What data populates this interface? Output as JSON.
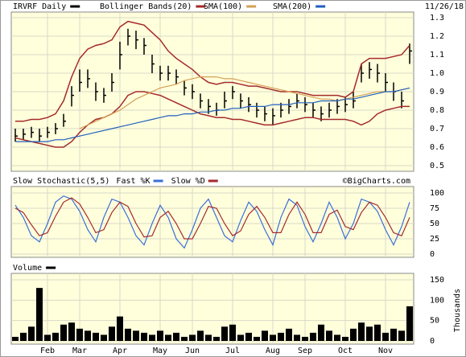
{
  "chart_data": [
    {
      "type": "ohlc",
      "date": "11/26/18",
      "ylim": [
        0.5,
        1.3
      ],
      "yticks": [
        0.5,
        0.6,
        0.7,
        0.8,
        0.9,
        {
          "value": 1,
          "label": "1.0"
        },
        1.1,
        1.2,
        1.3
      ],
      "grid": true,
      "series": [
        {
          "name": "IRVRF Daily",
          "color": "#000000",
          "high": [
            0.7,
            0.7,
            0.71,
            0.7,
            0.71,
            0.73,
            0.78,
            0.93,
            1.02,
            1.02,
            0.95,
            0.92,
            1.0,
            1.17,
            1.24,
            1.23,
            1.19,
            1.1,
            1.04,
            1.04,
            1.02,
            0.96,
            0.94,
            0.89,
            0.86,
            0.84,
            0.9,
            0.93,
            0.89,
            0.87,
            0.84,
            0.82,
            0.81,
            0.84,
            0.86,
            0.89,
            0.87,
            0.84,
            0.82,
            0.84,
            0.86,
            0.87,
            0.9,
            1.05,
            1.06,
            1.05,
            1.0,
            0.95,
            0.9,
            1.16
          ],
          "low": [
            0.63,
            0.64,
            0.65,
            0.63,
            0.65,
            0.67,
            0.71,
            0.82,
            0.9,
            0.92,
            0.85,
            0.84,
            0.9,
            1.02,
            1.15,
            1.13,
            1.1,
            1.0,
            0.96,
            0.96,
            0.94,
            0.88,
            0.86,
            0.81,
            0.78,
            0.77,
            0.81,
            0.86,
            0.81,
            0.79,
            0.76,
            0.74,
            0.72,
            0.76,
            0.78,
            0.81,
            0.79,
            0.76,
            0.74,
            0.76,
            0.78,
            0.79,
            0.81,
            0.95,
            0.97,
            0.95,
            0.9,
            0.85,
            0.81,
            1.05
          ],
          "close": [
            0.66,
            0.67,
            0.68,
            0.66,
            0.68,
            0.7,
            0.74,
            0.88,
            0.95,
            0.97,
            0.9,
            0.88,
            0.95,
            1.1,
            1.2,
            1.18,
            1.15,
            1.05,
            1.0,
            1.0,
            0.98,
            0.92,
            0.9,
            0.85,
            0.82,
            0.8,
            0.85,
            0.9,
            0.85,
            0.83,
            0.8,
            0.78,
            0.77,
            0.8,
            0.82,
            0.85,
            0.83,
            0.8,
            0.78,
            0.8,
            0.82,
            0.83,
            0.85,
            1.0,
            1.02,
            1.0,
            0.95,
            0.9,
            0.85,
            1.12
          ]
        },
        {
          "name": "Bollinger Bands(20)",
          "color": "#a52a2a",
          "upper": [
            0.74,
            0.74,
            0.75,
            0.75,
            0.76,
            0.78,
            0.85,
            0.98,
            1.08,
            1.13,
            1.15,
            1.16,
            1.18,
            1.25,
            1.28,
            1.27,
            1.26,
            1.22,
            1.18,
            1.12,
            1.08,
            1.05,
            1.02,
            0.98,
            0.95,
            0.94,
            0.95,
            0.95,
            0.94,
            0.93,
            0.93,
            0.92,
            0.91,
            0.9,
            0.9,
            0.9,
            0.89,
            0.88,
            0.88,
            0.88,
            0.88,
            0.87,
            0.9,
            1.05,
            1.08,
            1.08,
            1.08,
            1.09,
            1.1,
            1.15
          ],
          "lower": [
            0.65,
            0.64,
            0.63,
            0.62,
            0.61,
            0.6,
            0.6,
            0.63,
            0.68,
            0.72,
            0.75,
            0.76,
            0.78,
            0.82,
            0.88,
            0.9,
            0.9,
            0.89,
            0.88,
            0.86,
            0.84,
            0.82,
            0.8,
            0.78,
            0.77,
            0.76,
            0.76,
            0.75,
            0.75,
            0.74,
            0.73,
            0.72,
            0.72,
            0.73,
            0.74,
            0.75,
            0.76,
            0.76,
            0.75,
            0.75,
            0.75,
            0.75,
            0.74,
            0.72,
            0.74,
            0.78,
            0.8,
            0.81,
            0.82,
            0.82
          ]
        },
        {
          "name": "SMA(100)",
          "color": "#d4a055",
          "values": [
            null,
            null,
            null,
            null,
            null,
            null,
            null,
            null,
            0.7,
            0.72,
            0.74,
            0.76,
            0.78,
            0.8,
            0.83,
            0.86,
            0.88,
            0.9,
            0.92,
            0.93,
            0.94,
            0.96,
            0.97,
            0.98,
            0.98,
            0.98,
            0.97,
            0.97,
            0.96,
            0.95,
            0.94,
            0.93,
            0.92,
            0.91,
            0.9,
            0.89,
            0.88,
            0.87,
            0.86,
            0.86,
            0.85,
            0.86,
            0.87,
            0.88,
            0.89,
            0.9,
            0.9,
            0.9,
            0.91,
            0.92
          ]
        },
        {
          "name": "SMA(200)",
          "color": "#1f5fbf",
          "values": [
            0.63,
            0.63,
            0.63,
            0.63,
            0.63,
            0.64,
            0.64,
            0.65,
            0.66,
            0.67,
            0.68,
            0.69,
            0.7,
            0.71,
            0.72,
            0.73,
            0.74,
            0.75,
            0.76,
            0.77,
            0.77,
            0.78,
            0.78,
            0.79,
            0.79,
            0.8,
            0.8,
            0.81,
            0.81,
            0.82,
            0.82,
            0.82,
            0.83,
            0.83,
            0.83,
            0.84,
            0.84,
            0.84,
            0.85,
            0.85,
            0.85,
            0.86,
            0.86,
            0.87,
            0.88,
            0.89,
            0.9,
            0.9,
            0.91,
            0.92
          ]
        }
      ]
    },
    {
      "type": "line",
      "title": "Slow Stochastic(5,5)",
      "credit": "©BigCharts.com",
      "ylim": [
        0,
        100
      ],
      "yticks": [
        0,
        25,
        50,
        75,
        100
      ],
      "grid": true,
      "series": [
        {
          "name": "Fast %K",
          "color": "#3a6fd8",
          "values": [
            80,
            60,
            30,
            20,
            50,
            85,
            95,
            90,
            70,
            40,
            20,
            60,
            90,
            85,
            60,
            30,
            15,
            50,
            80,
            60,
            25,
            10,
            40,
            75,
            90,
            60,
            30,
            20,
            55,
            85,
            70,
            40,
            15,
            60,
            90,
            80,
            45,
            20,
            50,
            85,
            60,
            25,
            50,
            90,
            85,
            70,
            40,
            15,
            45,
            85
          ]
        },
        {
          "name": "Slow %D",
          "color": "#a52a2a",
          "values": [
            75,
            68,
            48,
            30,
            35,
            62,
            85,
            92,
            82,
            60,
            35,
            40,
            68,
            85,
            78,
            50,
            28,
            30,
            60,
            70,
            50,
            25,
            25,
            50,
            78,
            75,
            50,
            30,
            38,
            65,
            78,
            60,
            35,
            35,
            65,
            85,
            65,
            35,
            35,
            65,
            72,
            45,
            40,
            68,
            85,
            80,
            60,
            35,
            30,
            60
          ]
        }
      ]
    },
    {
      "type": "bar",
      "title": "Volume",
      "ylabel": "Thousands",
      "color": "#000000",
      "ylim": [
        0,
        150
      ],
      "yticks": [
        0,
        50,
        100,
        150
      ],
      "grid": true,
      "categories": [
        null,
        null,
        null,
        null,
        "Feb",
        null,
        null,
        null,
        "Mar",
        null,
        null,
        null,
        null,
        "Apr",
        null,
        null,
        null,
        null,
        "May",
        null,
        null,
        null,
        "Jun",
        null,
        null,
        null,
        null,
        "Jul",
        null,
        null,
        null,
        null,
        "Aug",
        null,
        null,
        null,
        "Sep",
        null,
        null,
        null,
        null,
        "Oct",
        null,
        null,
        null,
        null,
        "Nov",
        null,
        null,
        null
      ],
      "values": [
        10,
        20,
        35,
        130,
        15,
        20,
        40,
        45,
        30,
        25,
        20,
        15,
        35,
        60,
        30,
        25,
        20,
        15,
        25,
        15,
        20,
        10,
        15,
        25,
        15,
        10,
        35,
        40,
        15,
        20,
        10,
        25,
        15,
        20,
        30,
        15,
        10,
        20,
        40,
        25,
        15,
        10,
        30,
        45,
        35,
        40,
        20,
        30,
        25,
        85
      ]
    }
  ]
}
